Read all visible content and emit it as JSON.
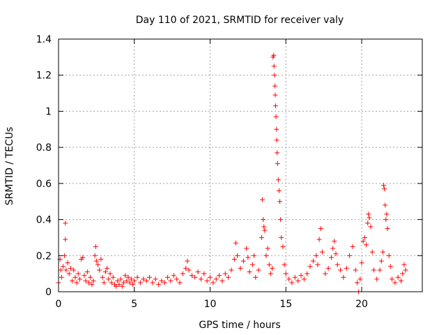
{
  "chart_data": {
    "type": "scatter",
    "title": "Day 110 of 2021, SRMTID for receiver valy",
    "xlabel": "GPS time / hours",
    "ylabel": "SRMTID / TECUs",
    "xlim": [
      0,
      24
    ],
    "ylim": [
      0,
      1.4
    ],
    "grid": true,
    "marker": "+",
    "color": "#ff0000",
    "xticks": [
      {
        "value": 0,
        "label": "0"
      },
      {
        "value": 5,
        "label": "5"
      },
      {
        "value": 10,
        "label": "10"
      },
      {
        "value": 15,
        "label": "15"
      },
      {
        "value": 20,
        "label": "20"
      }
    ],
    "yticks": [
      {
        "value": 0,
        "label": "0"
      },
      {
        "value": 0.2,
        "label": "0.2"
      },
      {
        "value": 0.4,
        "label": "0.4"
      },
      {
        "value": 0.6,
        "label": "0.6"
      },
      {
        "value": 0.8,
        "label": "0.8"
      },
      {
        "value": 1.0,
        "label": "1"
      },
      {
        "value": 1.2,
        "label": "1.2"
      },
      {
        "value": 1.4,
        "label": "1.4"
      }
    ],
    "series": [
      {
        "name": "SRMTID",
        "points": [
          [
            0.0,
            0.05
          ],
          [
            0.1,
            0.18
          ],
          [
            0.15,
            0.12
          ],
          [
            0.2,
            0.08
          ],
          [
            0.3,
            0.14
          ],
          [
            0.4,
            0.2
          ],
          [
            0.45,
            0.38
          ],
          [
            0.45,
            0.29
          ],
          [
            0.5,
            0.12
          ],
          [
            0.6,
            0.16
          ],
          [
            0.7,
            0.1
          ],
          [
            0.8,
            0.13
          ],
          [
            0.9,
            0.06
          ],
          [
            1.0,
            0.12
          ],
          [
            1.1,
            0.08
          ],
          [
            1.2,
            0.05
          ],
          [
            1.3,
            0.1
          ],
          [
            1.4,
            0.07
          ],
          [
            1.5,
            0.18
          ],
          [
            1.6,
            0.19
          ],
          [
            1.7,
            0.09
          ],
          [
            1.8,
            0.06
          ],
          [
            1.9,
            0.11
          ],
          [
            2.0,
            0.05
          ],
          [
            2.1,
            0.08
          ],
          [
            2.2,
            0.04
          ],
          [
            2.3,
            0.06
          ],
          [
            2.4,
            0.2
          ],
          [
            2.45,
            0.25
          ],
          [
            2.5,
            0.17
          ],
          [
            2.6,
            0.15
          ],
          [
            2.7,
            0.12
          ],
          [
            2.8,
            0.18
          ],
          [
            2.9,
            0.08
          ],
          [
            3.0,
            0.05
          ],
          [
            3.1,
            0.11
          ],
          [
            3.2,
            0.13
          ],
          [
            3.3,
            0.07
          ],
          [
            3.4,
            0.1
          ],
          [
            3.5,
            0.05
          ],
          [
            3.6,
            0.08
          ],
          [
            3.7,
            0.04
          ],
          [
            3.8,
            0.03
          ],
          [
            3.9,
            0.06
          ],
          [
            4.0,
            0.04
          ],
          [
            4.1,
            0.07
          ],
          [
            4.2,
            0.03
          ],
          [
            4.3,
            0.05
          ],
          [
            4.4,
            0.09
          ],
          [
            4.5,
            0.06
          ],
          [
            4.6,
            0.08
          ],
          [
            4.7,
            0.05
          ],
          [
            4.8,
            0.07
          ],
          [
            4.9,
            0.04
          ],
          [
            5.0,
            0.06
          ],
          [
            5.2,
            0.08
          ],
          [
            5.4,
            0.05
          ],
          [
            5.6,
            0.07
          ],
          [
            5.8,
            0.06
          ],
          [
            6.0,
            0.08
          ],
          [
            6.2,
            0.05
          ],
          [
            6.4,
            0.07
          ],
          [
            6.6,
            0.04
          ],
          [
            6.8,
            0.06
          ],
          [
            7.0,
            0.05
          ],
          [
            7.2,
            0.08
          ],
          [
            7.4,
            0.06
          ],
          [
            7.6,
            0.09
          ],
          [
            7.8,
            0.07
          ],
          [
            8.0,
            0.05
          ],
          [
            8.2,
            0.1
          ],
          [
            8.4,
            0.13
          ],
          [
            8.5,
            0.17
          ],
          [
            8.6,
            0.12
          ],
          [
            8.8,
            0.09
          ],
          [
            9.0,
            0.08
          ],
          [
            9.2,
            0.11
          ],
          [
            9.4,
            0.07
          ],
          [
            9.6,
            0.1
          ],
          [
            9.8,
            0.06
          ],
          [
            10.0,
            0.08
          ],
          [
            10.2,
            0.05
          ],
          [
            10.4,
            0.07
          ],
          [
            10.6,
            0.09
          ],
          [
            10.8,
            0.06
          ],
          [
            11.0,
            0.1
          ],
          [
            11.2,
            0.08
          ],
          [
            11.4,
            0.12
          ],
          [
            11.6,
            0.18
          ],
          [
            11.7,
            0.27
          ],
          [
            11.8,
            0.2
          ],
          [
            12.0,
            0.13
          ],
          [
            12.2,
            0.17
          ],
          [
            12.4,
            0.24
          ],
          [
            12.5,
            0.19
          ],
          [
            12.6,
            0.11
          ],
          [
            12.8,
            0.15
          ],
          [
            12.9,
            0.2
          ],
          [
            13.0,
            0.08
          ],
          [
            13.2,
            0.12
          ],
          [
            13.4,
            0.3
          ],
          [
            13.45,
            0.51
          ],
          [
            13.5,
            0.4
          ],
          [
            13.55,
            0.36
          ],
          [
            13.6,
            0.34
          ],
          [
            13.7,
            0.2
          ],
          [
            13.8,
            0.24
          ],
          [
            13.9,
            0.15
          ],
          [
            14.0,
            0.1
          ],
          [
            14.1,
            0.13
          ],
          [
            14.15,
            1.3
          ],
          [
            14.2,
            1.31
          ],
          [
            14.22,
            1.25
          ],
          [
            14.25,
            1.2
          ],
          [
            14.28,
            1.14
          ],
          [
            14.3,
            1.09
          ],
          [
            14.32,
            1.03
          ],
          [
            14.35,
            0.97
          ],
          [
            14.38,
            0.9
          ],
          [
            14.4,
            0.84
          ],
          [
            14.42,
            0.77
          ],
          [
            14.45,
            0.71
          ],
          [
            14.5,
            0.62
          ],
          [
            14.55,
            0.56
          ],
          [
            14.6,
            0.5
          ],
          [
            14.65,
            0.4
          ],
          [
            14.7,
            0.3
          ],
          [
            14.8,
            0.25
          ],
          [
            14.9,
            0.15
          ],
          [
            15.0,
            0.1
          ],
          [
            15.2,
            0.07
          ],
          [
            15.4,
            0.05
          ],
          [
            15.6,
            0.08
          ],
          [
            15.8,
            0.06
          ],
          [
            16.0,
            0.09
          ],
          [
            16.2,
            0.07
          ],
          [
            16.4,
            0.1
          ],
          [
            16.6,
            0.14
          ],
          [
            16.8,
            0.17
          ],
          [
            17.0,
            0.2
          ],
          [
            17.1,
            0.15
          ],
          [
            17.2,
            0.29
          ],
          [
            17.3,
            0.35
          ],
          [
            17.4,
            0.22
          ],
          [
            17.6,
            0.1
          ],
          [
            17.8,
            0.13
          ],
          [
            18.0,
            0.19
          ],
          [
            18.1,
            0.24
          ],
          [
            18.2,
            0.28
          ],
          [
            18.3,
            0.21
          ],
          [
            18.4,
            0.15
          ],
          [
            18.6,
            0.12
          ],
          [
            18.8,
            0.08
          ],
          [
            19.0,
            0.13
          ],
          [
            19.2,
            0.2
          ],
          [
            19.4,
            0.25
          ],
          [
            19.6,
            0.12
          ],
          [
            19.7,
            0.05
          ],
          [
            19.8,
            0.0
          ],
          [
            19.9,
            0.07
          ],
          [
            20.0,
            0.16
          ],
          [
            20.1,
            0.28
          ],
          [
            20.2,
            0.3
          ],
          [
            20.3,
            0.26
          ],
          [
            20.4,
            0.38
          ],
          [
            20.45,
            0.43
          ],
          [
            20.5,
            0.41
          ],
          [
            20.6,
            0.36
          ],
          [
            20.7,
            0.22
          ],
          [
            20.8,
            0.12
          ],
          [
            21.0,
            0.07
          ],
          [
            21.2,
            0.12
          ],
          [
            21.3,
            0.17
          ],
          [
            21.4,
            0.22
          ],
          [
            21.45,
            0.59
          ],
          [
            21.5,
            0.57
          ],
          [
            21.55,
            0.48
          ],
          [
            21.6,
            0.4
          ],
          [
            21.65,
            0.43
          ],
          [
            21.7,
            0.35
          ],
          [
            21.8,
            0.2
          ],
          [
            21.9,
            0.14
          ],
          [
            22.0,
            0.07
          ],
          [
            22.2,
            0.05
          ],
          [
            22.4,
            0.08
          ],
          [
            22.6,
            0.06
          ],
          [
            22.7,
            0.1
          ],
          [
            22.8,
            0.15
          ],
          [
            22.9,
            0.12
          ]
        ]
      }
    ]
  }
}
